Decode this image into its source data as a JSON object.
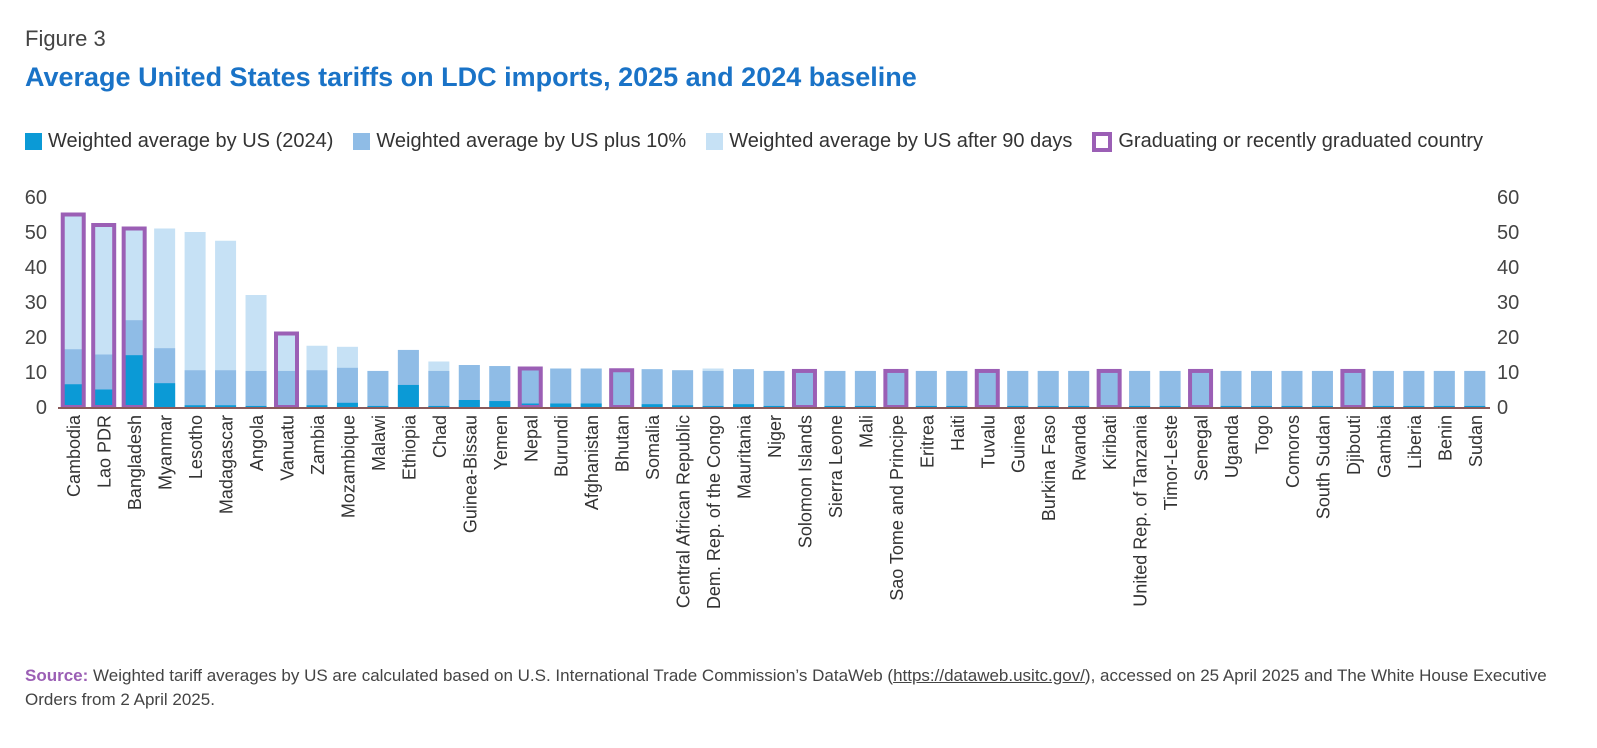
{
  "figure_label": "Figure 3",
  "chart_data": {
    "type": "bar",
    "title": "Average United States tariffs on LDC imports, 2025 and 2024 baseline",
    "xlabel": "",
    "ylabel": "",
    "ylim": [
      0,
      60
    ],
    "yticks": [
      0,
      10,
      20,
      30,
      40,
      50,
      60
    ],
    "legend_position": "top",
    "categories": [
      "Cambodia",
      "Lao PDR",
      "Bangladesh",
      "Myanmar",
      "Lesotho",
      "Madagascar",
      "Angola",
      "Vanuatu",
      "Zambia",
      "Mozambique",
      "Malawi",
      "Ethiopia",
      "Chad",
      "Guinea-Bissau",
      "Yemen",
      "Nepal",
      "Burundi",
      "Afghanistan",
      "Bhutan",
      "Somalia",
      "Central African Republic",
      "Dem. Rep. of the Congo",
      "Mauritania",
      "Niger",
      "Solomon Islands",
      "Sierra Leone",
      "Mali",
      "Sao Tome and Principe",
      "Eritrea",
      "Haiti",
      "Tuvalu",
      "Guinea",
      "Burkina Faso",
      "Rwanda",
      "Kiribati",
      "United Rep. of Tanzania",
      "Timor-Leste",
      "Senegal",
      "Uganda",
      "Togo",
      "Comoros",
      "South Sudan",
      "Djibouti",
      "Gambia",
      "Liberia",
      "Benin",
      "Sudan"
    ],
    "series": [
      {
        "name": "Weighted average by US (2024)",
        "color": "#0b9ad6",
        "values": [
          6.5,
          5,
          14.8,
          6.8,
          0.5,
          0.5,
          0.3,
          0.3,
          0.5,
          1.2,
          0.3,
          6.3,
          0.3,
          2,
          1.7,
          1,
          1,
          1,
          0.5,
          0.8,
          0.5,
          0.3,
          0.8,
          0.3,
          0.3,
          0.3,
          0.3,
          0.3,
          0.3,
          0.3,
          0.3,
          0.3,
          0.3,
          0.3,
          0.3,
          0.3,
          0.3,
          0.3,
          0.3,
          0.3,
          0.3,
          0.3,
          0.3,
          0.3,
          0.3,
          0.3,
          0.3
        ]
      },
      {
        "name": "Weighted average by US plus 10%",
        "color": "#8fbce6",
        "values": [
          16.5,
          15,
          24.8,
          16.8,
          10.5,
          10.5,
          10.3,
          10.3,
          10.5,
          11.2,
          10.3,
          16.3,
          10.3,
          12,
          11.7,
          11,
          11,
          11,
          10.5,
          10.8,
          10.5,
          10.3,
          10.8,
          10.3,
          10.3,
          10.3,
          10.3,
          10.3,
          10.3,
          10.3,
          10.3,
          10.3,
          10.3,
          10.3,
          10.3,
          10.3,
          10.3,
          10.3,
          10.3,
          10.3,
          10.3,
          10.3,
          10.3,
          10.3,
          10.3,
          10.3,
          10.3
        ]
      },
      {
        "name": "Weighted average by US after 90 days",
        "color": "#c6e1f5",
        "values": [
          55,
          52,
          51,
          51,
          50,
          47.5,
          32,
          21,
          17.5,
          17.2,
          10.3,
          16.3,
          13,
          12,
          11.7,
          11,
          11,
          11,
          10.5,
          10.8,
          10.5,
          11,
          10.8,
          10.3,
          10.3,
          10.3,
          10.3,
          10.3,
          10.3,
          10.3,
          10.3,
          10.3,
          10.3,
          10.3,
          10.3,
          10.3,
          10.3,
          10.3,
          10.3,
          10.3,
          10.3,
          10.3,
          10.3,
          10.3,
          10.3,
          10.3,
          10.3
        ]
      }
    ],
    "graduating": [
      "Cambodia",
      "Lao PDR",
      "Bangladesh",
      "Vanuatu",
      "Nepal",
      "Bhutan",
      "Solomon Islands",
      "Sao Tome and Principe",
      "Tuvalu",
      "Kiribati",
      "Senegal",
      "Djibouti"
    ],
    "graduating_legend": "Graduating or recently graduated country",
    "outline_color": "#9b5fb5",
    "axis_color": "#8a5a5a"
  },
  "source": {
    "label": "Source:",
    "text_before": " Weighted tariff averages by US are calculated based on U.S. International Trade Commission’s DataWeb (",
    "link": "https://dataweb.usitc.gov/",
    "text_after": "), accessed on 25 April 2025 and The White House Executive Orders from 2 April 2025."
  }
}
